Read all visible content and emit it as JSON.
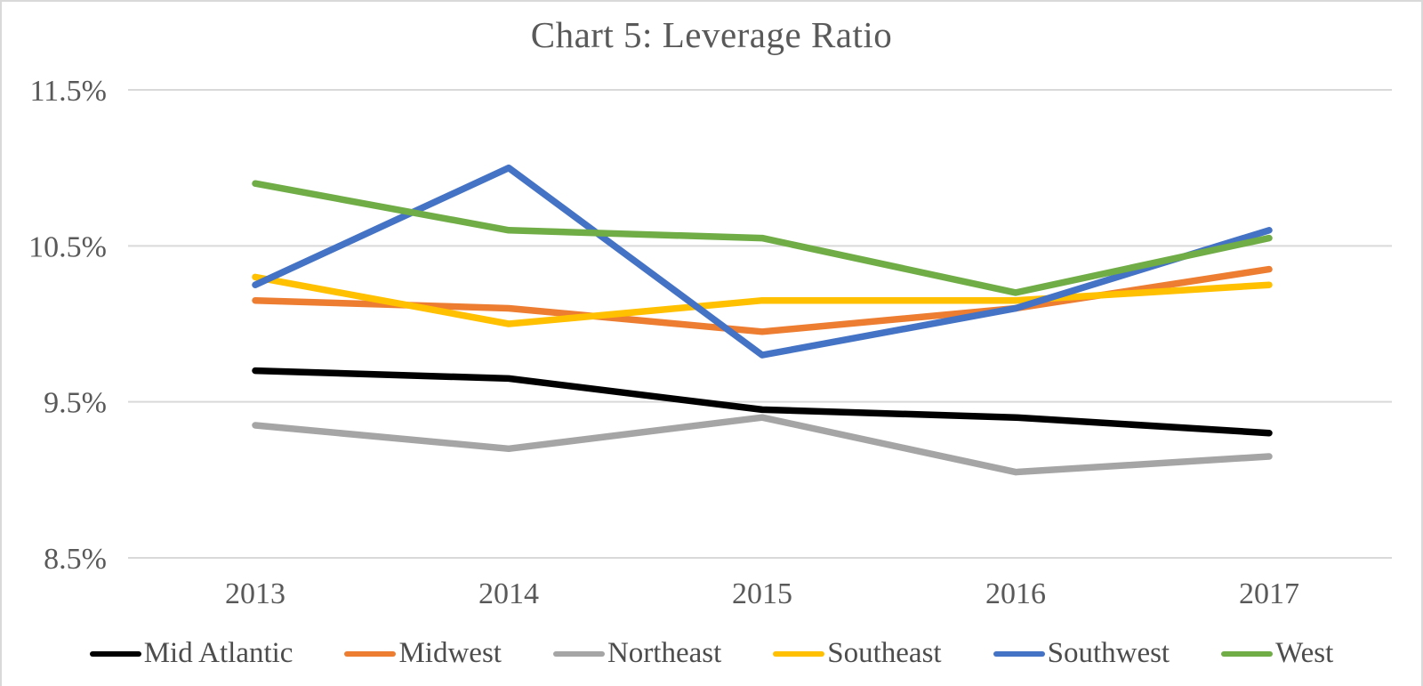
{
  "chart_data": {
    "type": "line",
    "title": "Chart 5: Leverage Ratio",
    "categories": [
      "2013",
      "2014",
      "2015",
      "2016",
      "2017"
    ],
    "series": [
      {
        "name": "Mid Atlantic",
        "color": "#000000",
        "values": [
          9.7,
          9.65,
          9.45,
          9.4,
          9.3
        ]
      },
      {
        "name": "Midwest",
        "color": "#ED7D31",
        "values": [
          10.15,
          10.1,
          9.95,
          10.1,
          10.35
        ]
      },
      {
        "name": "Northeast",
        "color": "#A5A5A5",
        "values": [
          9.35,
          9.2,
          9.4,
          9.05,
          9.15
        ]
      },
      {
        "name": "Southeast",
        "color": "#FFC000",
        "values": [
          10.3,
          10.0,
          10.15,
          10.15,
          10.25
        ]
      },
      {
        "name": "Southwest",
        "color": "#4472C4",
        "values": [
          10.25,
          11.0,
          9.8,
          10.1,
          10.6
        ]
      },
      {
        "name": "West",
        "color": "#70AD47",
        "values": [
          10.9,
          10.6,
          10.55,
          10.2,
          10.55
        ]
      }
    ],
    "xlabel": "",
    "ylabel": "",
    "y_ticks": [
      {
        "label": "11.5%",
        "value": 11.5
      },
      {
        "label": "10.5%",
        "value": 10.5
      },
      {
        "label": "9.5%",
        "value": 9.5
      },
      {
        "label": "8.5%",
        "value": 8.5
      }
    ],
    "ylim": [
      8.5,
      11.5
    ],
    "grid": "horizontal",
    "gridline_color": "#D9D9D9",
    "axis_text_color": "#595959",
    "legend_position": "bottom"
  }
}
